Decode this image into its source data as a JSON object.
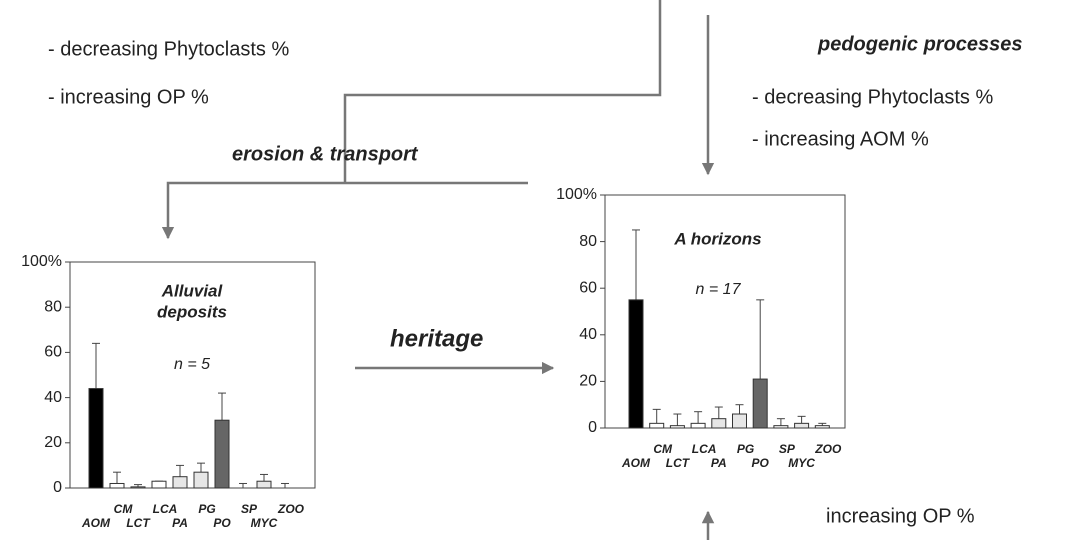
{
  "texts": {
    "left_notes": [
      "- decreasing Phytoclasts %",
      "- increasing OP %"
    ],
    "erosion": "erosion & transport",
    "pedogenic": "pedogenic processes",
    "right_notes": [
      "- decreasing Phytoclasts %",
      "- increasing AOM %"
    ],
    "heritage": "heritage",
    "bottom_note": "increasing OP %"
  },
  "chart_data": [
    {
      "type": "bar",
      "title_lines": [
        "Alluvial",
        "deposits"
      ],
      "subtitle": "n = 5",
      "categories": [
        "AOM",
        "CM",
        "LCT",
        "LCA",
        "PA",
        "PG",
        "PO",
        "SP",
        "MYC",
        "ZOO"
      ],
      "values": [
        44,
        2,
        0.5,
        3,
        5,
        7,
        30,
        0,
        3,
        0
      ],
      "errors": [
        20,
        5,
        1,
        0,
        5,
        4,
        12,
        2,
        3,
        2
      ],
      "colors": [
        "#000000",
        "#ffffff",
        "#ffffff",
        "#ffffff",
        "#e6e6e6",
        "#e6e6e6",
        "#666666",
        "#ffffff",
        "#e6e6e6",
        "#ffffff"
      ],
      "ylim": [
        0,
        100
      ],
      "yticks": [
        0,
        20,
        40,
        60,
        80,
        {
          "value": 100,
          "label": "100%"
        }
      ]
    },
    {
      "type": "bar",
      "title_lines": [
        "A horizons"
      ],
      "subtitle": "n = 17",
      "categories": [
        "AOM",
        "CM",
        "LCT",
        "LCA",
        "PA",
        "PG",
        "PO",
        "SP",
        "MYC",
        "ZOO"
      ],
      "values": [
        55,
        2,
        1,
        2,
        4,
        6,
        21,
        1,
        2,
        1
      ],
      "errors": [
        30,
        6,
        5,
        5,
        5,
        4,
        34,
        3,
        3,
        1
      ],
      "colors": [
        "#000000",
        "#ffffff",
        "#ffffff",
        "#ffffff",
        "#e6e6e6",
        "#e6e6e6",
        "#666666",
        "#ffffff",
        "#e6e6e6",
        "#ffffff"
      ],
      "ylim": [
        0,
        100
      ],
      "yticks": [
        0,
        20,
        40,
        60,
        80,
        {
          "value": 100,
          "label": "100%"
        }
      ]
    }
  ]
}
